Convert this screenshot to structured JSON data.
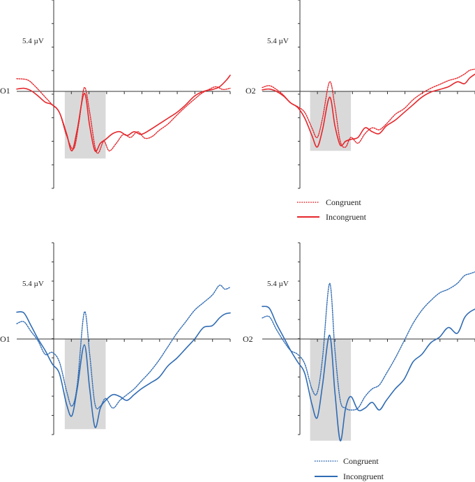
{
  "figure": {
    "colors": {
      "red": "#e5262b",
      "blue": "#2f6bb3",
      "window": "#d9d9d9"
    },
    "scale_label": "5.4 µV"
  },
  "legends": [
    {
      "congruent_label": "Congruent",
      "incongruent_label": "Incongruent",
      "color": "#e5262b"
    },
    {
      "congruent_label": "Congruent",
      "incongruent_label": "Incongruent",
      "color": "#2f6bb3"
    }
  ],
  "chart_data": [
    {
      "type": "line",
      "channel": "O1",
      "color": "#e5262b",
      "x_ticks": 10,
      "y_ticks": 8,
      "ylim": [
        -2.7,
        2.7
      ],
      "shaded_window": {
        "x": [
          0.07,
          0.3
        ],
        "y": [
          -1.75,
          0
        ]
      },
      "series": [
        {
          "name": "Congruent",
          "style": "dotted",
          "points": [
            [
              -0.2,
              0.33
            ],
            [
              -0.14,
              0.3
            ],
            [
              -0.1,
              0.15
            ],
            [
              -0.05,
              -0.1
            ],
            [
              0,
              -0.35
            ],
            [
              0.04,
              -0.55
            ],
            [
              0.08,
              -1.15
            ],
            [
              0.12,
              -1.5
            ],
            [
              0.15,
              -0.8
            ],
            [
              0.18,
              0.1
            ],
            [
              0.21,
              -0.55
            ],
            [
              0.24,
              -1.45
            ],
            [
              0.26,
              -1.6
            ],
            [
              0.29,
              -1.3
            ],
            [
              0.32,
              -1.55
            ],
            [
              0.36,
              -1.35
            ],
            [
              0.4,
              -1.12
            ],
            [
              0.44,
              -1.2
            ],
            [
              0.48,
              -1.05
            ],
            [
              0.52,
              -1.22
            ],
            [
              0.56,
              -1.18
            ],
            [
              0.6,
              -1.02
            ],
            [
              0.65,
              -0.85
            ],
            [
              0.7,
              -0.62
            ],
            [
              0.75,
              -0.4
            ],
            [
              0.8,
              -0.2
            ],
            [
              0.84,
              -0.05
            ],
            [
              0.88,
              0.05
            ],
            [
              0.92,
              0.12
            ],
            [
              0.96,
              0.05
            ],
            [
              1.0,
              0.08
            ]
          ]
        },
        {
          "name": "Incongruent",
          "style": "solid",
          "points": [
            [
              -0.2,
              0.06
            ],
            [
              -0.16,
              0.08
            ],
            [
              -0.12,
              0.02
            ],
            [
              -0.08,
              -0.12
            ],
            [
              -0.04,
              -0.28
            ],
            [
              0.0,
              -0.35
            ],
            [
              0.04,
              -0.55
            ],
            [
              0.08,
              -1.1
            ],
            [
              0.11,
              -1.55
            ],
            [
              0.14,
              -1.0
            ],
            [
              0.18,
              -0.05
            ],
            [
              0.21,
              -0.9
            ],
            [
              0.24,
              -1.55
            ],
            [
              0.27,
              -1.35
            ],
            [
              0.3,
              -1.25
            ],
            [
              0.34,
              -1.1
            ],
            [
              0.38,
              -1.05
            ],
            [
              0.42,
              -1.15
            ],
            [
              0.46,
              -1.05
            ],
            [
              0.5,
              -1.12
            ],
            [
              0.55,
              -1.0
            ],
            [
              0.6,
              -0.85
            ],
            [
              0.65,
              -0.7
            ],
            [
              0.7,
              -0.55
            ],
            [
              0.75,
              -0.35
            ],
            [
              0.8,
              -0.12
            ],
            [
              0.85,
              0.0
            ],
            [
              0.9,
              0.05
            ],
            [
              0.94,
              0.12
            ],
            [
              0.98,
              0.3
            ],
            [
              1.0,
              0.42
            ]
          ]
        }
      ]
    },
    {
      "type": "line",
      "channel": "O2",
      "color": "#e5262b",
      "x_ticks": 10,
      "y_ticks": 8,
      "ylim": [
        -2.7,
        2.7
      ],
      "shaded_window": {
        "x": [
          0.07,
          0.3
        ],
        "y": [
          -1.55,
          0
        ]
      },
      "series": [
        {
          "name": "Congruent",
          "style": "dotted",
          "points": [
            [
              -0.2,
              0.1
            ],
            [
              -0.16,
              0.15
            ],
            [
              -0.12,
              0.05
            ],
            [
              -0.08,
              -0.1
            ],
            [
              -0.04,
              -0.3
            ],
            [
              0.0,
              -0.4
            ],
            [
              0.04,
              -0.55
            ],
            [
              0.08,
              -0.95
            ],
            [
              0.11,
              -1.2
            ],
            [
              0.14,
              -0.7
            ],
            [
              0.18,
              0.25
            ],
            [
              0.21,
              -0.4
            ],
            [
              0.24,
              -1.3
            ],
            [
              0.27,
              -1.45
            ],
            [
              0.3,
              -1.2
            ],
            [
              0.34,
              -1.35
            ],
            [
              0.38,
              -1.1
            ],
            [
              0.42,
              -0.95
            ],
            [
              0.46,
              -1.0
            ],
            [
              0.5,
              -0.85
            ],
            [
              0.55,
              -0.6
            ],
            [
              0.6,
              -0.45
            ],
            [
              0.65,
              -0.22
            ],
            [
              0.7,
              -0.05
            ],
            [
              0.75,
              0.08
            ],
            [
              0.8,
              0.18
            ],
            [
              0.85,
              0.28
            ],
            [
              0.9,
              0.35
            ],
            [
              0.94,
              0.45
            ],
            [
              0.97,
              0.55
            ],
            [
              1.0,
              0.58
            ]
          ]
        },
        {
          "name": "Incongruent",
          "style": "solid",
          "points": [
            [
              -0.2,
              0.04
            ],
            [
              -0.16,
              0.06
            ],
            [
              -0.12,
              0.0
            ],
            [
              -0.08,
              -0.12
            ],
            [
              -0.04,
              -0.3
            ],
            [
              0.0,
              -0.42
            ],
            [
              0.04,
              -0.7
            ],
            [
              0.08,
              -1.15
            ],
            [
              0.11,
              -1.45
            ],
            [
              0.14,
              -1.0
            ],
            [
              0.18,
              -0.15
            ],
            [
              0.21,
              -0.9
            ],
            [
              0.24,
              -1.4
            ],
            [
              0.27,
              -1.3
            ],
            [
              0.3,
              -1.25
            ],
            [
              0.34,
              -1.2
            ],
            [
              0.38,
              -0.95
            ],
            [
              0.42,
              -1.05
            ],
            [
              0.46,
              -1.1
            ],
            [
              0.5,
              -0.9
            ],
            [
              0.55,
              -0.75
            ],
            [
              0.6,
              -0.55
            ],
            [
              0.65,
              -0.35
            ],
            [
              0.7,
              -0.15
            ],
            [
              0.75,
              -0.02
            ],
            [
              0.8,
              0.05
            ],
            [
              0.85,
              0.12
            ],
            [
              0.9,
              0.25
            ],
            [
              0.94,
              0.2
            ],
            [
              0.97,
              0.35
            ],
            [
              1.0,
              0.45
            ]
          ]
        }
      ]
    },
    {
      "type": "line",
      "channel": "O1",
      "color": "#2f6bb3",
      "x_ticks": 10,
      "y_ticks": 10,
      "ylim": [
        -2.7,
        2.7
      ],
      "shaded_window": {
        "x": [
          0.07,
          0.3
        ],
        "y": [
          -2.35,
          0
        ]
      },
      "series": [
        {
          "name": "Congruent",
          "style": "dotted",
          "points": [
            [
              -0.2,
              0.4
            ],
            [
              -0.16,
              0.45
            ],
            [
              -0.12,
              0.2
            ],
            [
              -0.08,
              -0.05
            ],
            [
              -0.04,
              -0.4
            ],
            [
              0.0,
              -0.35
            ],
            [
              0.04,
              -0.6
            ],
            [
              0.08,
              -1.35
            ],
            [
              0.11,
              -1.75
            ],
            [
              0.14,
              -1.2
            ],
            [
              0.18,
              0.7
            ],
            [
              0.21,
              -0.4
            ],
            [
              0.24,
              -1.7
            ],
            [
              0.27,
              -1.75
            ],
            [
              0.3,
              -1.55
            ],
            [
              0.34,
              -1.8
            ],
            [
              0.38,
              -1.6
            ],
            [
              0.42,
              -1.45
            ],
            [
              0.46,
              -1.3
            ],
            [
              0.5,
              -1.1
            ],
            [
              0.55,
              -0.85
            ],
            [
              0.6,
              -0.55
            ],
            [
              0.65,
              -0.2
            ],
            [
              0.7,
              0.15
            ],
            [
              0.75,
              0.45
            ],
            [
              0.8,
              0.75
            ],
            [
              0.85,
              0.95
            ],
            [
              0.9,
              1.15
            ],
            [
              0.94,
              1.4
            ],
            [
              0.97,
              1.3
            ],
            [
              1.0,
              1.35
            ]
          ]
        },
        {
          "name": "Incongruent",
          "style": "solid",
          "points": [
            [
              -0.2,
              0.7
            ],
            [
              -0.16,
              0.68
            ],
            [
              -0.12,
              0.35
            ],
            [
              -0.08,
              0.0
            ],
            [
              -0.04,
              -0.3
            ],
            [
              0.0,
              -0.65
            ],
            [
              0.04,
              -0.9
            ],
            [
              0.08,
              -1.7
            ],
            [
              0.11,
              -2.0
            ],
            [
              0.14,
              -1.3
            ],
            [
              0.18,
              -0.15
            ],
            [
              0.21,
              -1.3
            ],
            [
              0.24,
              -2.3
            ],
            [
              0.27,
              -1.8
            ],
            [
              0.3,
              -1.6
            ],
            [
              0.34,
              -1.45
            ],
            [
              0.38,
              -1.5
            ],
            [
              0.42,
              -1.6
            ],
            [
              0.46,
              -1.45
            ],
            [
              0.5,
              -1.3
            ],
            [
              0.55,
              -1.15
            ],
            [
              0.6,
              -1.0
            ],
            [
              0.65,
              -0.7
            ],
            [
              0.7,
              -0.5
            ],
            [
              0.75,
              -0.25
            ],
            [
              0.8,
              0.0
            ],
            [
              0.85,
              0.3
            ],
            [
              0.9,
              0.35
            ],
            [
              0.94,
              0.55
            ],
            [
              0.97,
              0.65
            ],
            [
              1.0,
              0.68
            ]
          ]
        }
      ]
    },
    {
      "type": "line",
      "channel": "O2",
      "color": "#2f6bb3",
      "x_ticks": 10,
      "y_ticks": 10,
      "ylim": [
        -2.7,
        2.7
      ],
      "shaded_window": {
        "x": [
          0.07,
          0.3
        ],
        "y": [
          -2.65,
          0
        ]
      },
      "series": [
        {
          "name": "Congruent",
          "style": "dotted",
          "points": [
            [
              -0.2,
              0.55
            ],
            [
              -0.16,
              0.58
            ],
            [
              -0.12,
              0.25
            ],
            [
              -0.08,
              -0.05
            ],
            [
              -0.04,
              -0.3
            ],
            [
              0.0,
              -0.4
            ],
            [
              0.04,
              -0.65
            ],
            [
              0.08,
              -1.3
            ],
            [
              0.11,
              -1.4
            ],
            [
              0.14,
              -0.5
            ],
            [
              0.18,
              1.45
            ],
            [
              0.21,
              -0.3
            ],
            [
              0.24,
              -1.6
            ],
            [
              0.27,
              -1.8
            ],
            [
              0.3,
              -1.85
            ],
            [
              0.34,
              -1.8
            ],
            [
              0.38,
              -1.5
            ],
            [
              0.42,
              -1.3
            ],
            [
              0.46,
              -1.2
            ],
            [
              0.5,
              -0.9
            ],
            [
              0.55,
              -0.5
            ],
            [
              0.6,
              -0.05
            ],
            [
              0.65,
              0.4
            ],
            [
              0.7,
              0.75
            ],
            [
              0.75,
              1.0
            ],
            [
              0.8,
              1.2
            ],
            [
              0.85,
              1.3
            ],
            [
              0.9,
              1.45
            ],
            [
              0.94,
              1.65
            ],
            [
              0.97,
              1.7
            ],
            [
              1.0,
              1.75
            ]
          ]
        },
        {
          "name": "Incongruent",
          "style": "solid",
          "points": [
            [
              -0.2,
              0.85
            ],
            [
              -0.16,
              0.8
            ],
            [
              -0.12,
              0.4
            ],
            [
              -0.08,
              0.05
            ],
            [
              -0.04,
              -0.3
            ],
            [
              0.0,
              -0.6
            ],
            [
              0.04,
              -0.9
            ],
            [
              0.08,
              -1.7
            ],
            [
              0.11,
              -2.05
            ],
            [
              0.14,
              -1.2
            ],
            [
              0.18,
              0.1
            ],
            [
              0.21,
              -1.4
            ],
            [
              0.24,
              -2.65
            ],
            [
              0.27,
              -1.8
            ],
            [
              0.3,
              -1.5
            ],
            [
              0.34,
              -1.85
            ],
            [
              0.38,
              -1.8
            ],
            [
              0.42,
              -1.65
            ],
            [
              0.46,
              -1.85
            ],
            [
              0.5,
              -1.6
            ],
            [
              0.55,
              -1.3
            ],
            [
              0.6,
              -1.05
            ],
            [
              0.65,
              -0.6
            ],
            [
              0.7,
              -0.4
            ],
            [
              0.75,
              -0.1
            ],
            [
              0.8,
              0.05
            ],
            [
              0.85,
              0.3
            ],
            [
              0.9,
              0.15
            ],
            [
              0.94,
              0.55
            ],
            [
              0.97,
              0.7
            ],
            [
              1.0,
              0.78
            ]
          ]
        }
      ]
    }
  ]
}
